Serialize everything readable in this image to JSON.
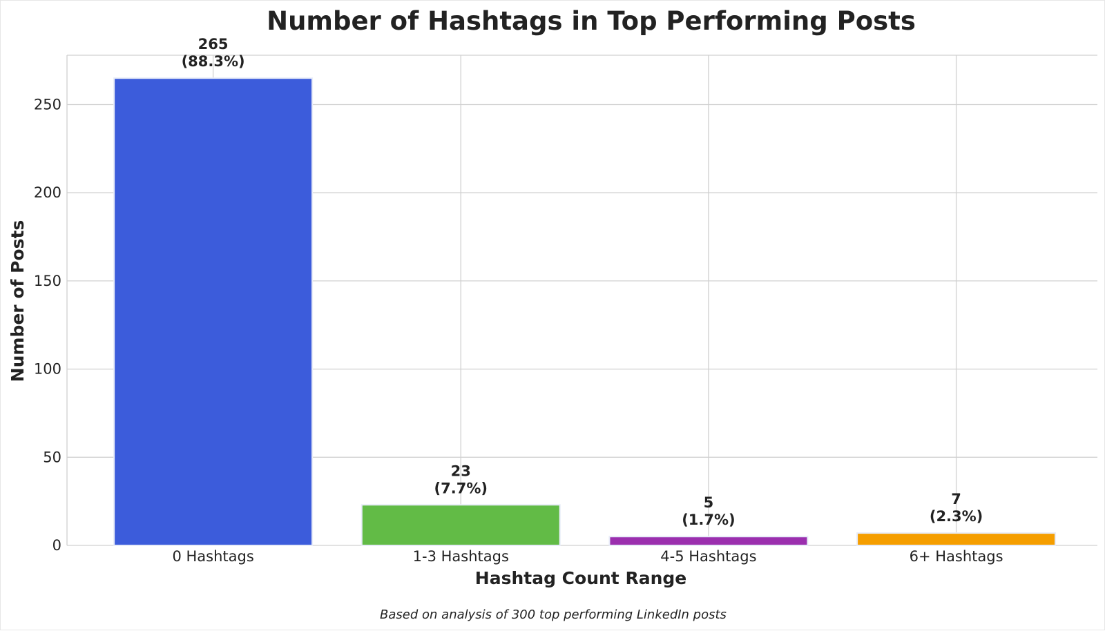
{
  "chart_data": {
    "type": "bar",
    "title": "Number of Hashtags in Top Performing Posts",
    "xlabel": "Hashtag Count Range",
    "ylabel": "Number of Posts",
    "categories": [
      "0 Hashtags",
      "1-3 Hashtags",
      "4-5 Hashtags",
      "6+ Hashtags"
    ],
    "values": [
      265,
      23,
      5,
      7
    ],
    "value_labels": [
      "265",
      "23",
      "5",
      "7"
    ],
    "percent_labels": [
      "(88.3%)",
      "(7.7%)",
      "(1.7%)",
      "(2.3%)"
    ],
    "colors": [
      "#3c5cdb",
      "#62bb46",
      "#9b2fae",
      "#f59e00"
    ],
    "ylim": [
      0,
      278
    ],
    "yticks": [
      0,
      50,
      100,
      150,
      200,
      250
    ],
    "grid": true,
    "legend": "none",
    "caption": "Based on analysis of 300 top performing LinkedIn posts"
  }
}
